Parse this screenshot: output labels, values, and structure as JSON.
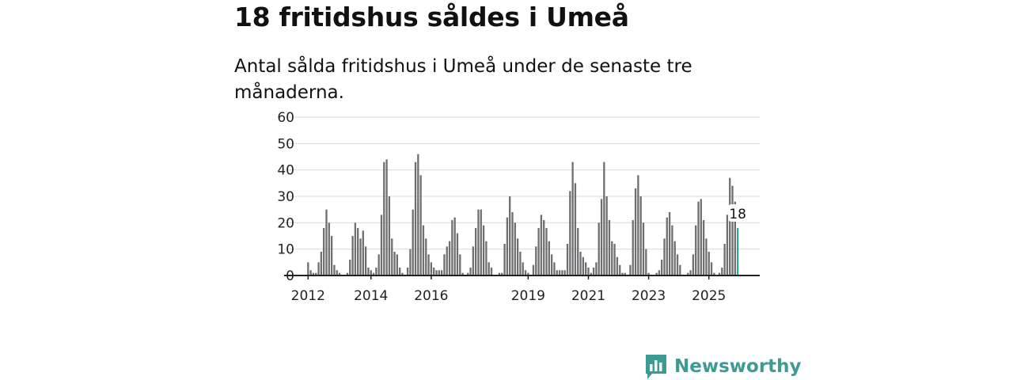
{
  "title": "18 fritidshus såldes i Umeå",
  "subtitle": "Antal sålda fritidshus i Umeå under de senaste tre månaderna.",
  "brand": {
    "name": "Newsworthy",
    "color": "#3c9b92"
  },
  "colors": {
    "bar": "#6f6f72",
    "highlight": "#2aa69b",
    "grid": "#d9d9d9",
    "axis": "#222222"
  },
  "chart_data": {
    "type": "bar",
    "ylim": [
      0,
      60
    ],
    "yticks": [
      0,
      10,
      20,
      30,
      40,
      50,
      60
    ],
    "xtick_labels": [
      "2012",
      "2014",
      "2016",
      "2019",
      "2021",
      "2023",
      "2025"
    ],
    "xtick_positions": [
      1,
      25,
      48,
      85,
      108,
      131,
      154
    ],
    "highlight_label": "18",
    "values": [
      0,
      5,
      2,
      1,
      1,
      5,
      9,
      18,
      25,
      20,
      15,
      4,
      2,
      1,
      0,
      0,
      1,
      6,
      15,
      20,
      18,
      14,
      17,
      11,
      3,
      2,
      1,
      3,
      8,
      23,
      43,
      44,
      30,
      14,
      9,
      8,
      3,
      1,
      0,
      3,
      10,
      25,
      43,
      46,
      38,
      19,
      14,
      8,
      5,
      3,
      2,
      2,
      2,
      8,
      11,
      13,
      21,
      22,
      16,
      8,
      1,
      0,
      1,
      3,
      11,
      18,
      25,
      25,
      19,
      13,
      5,
      3,
      0,
      0,
      1,
      1,
      12,
      22,
      30,
      24,
      20,
      14,
      9,
      5,
      2,
      1,
      0,
      4,
      11,
      18,
      23,
      21,
      18,
      13,
      8,
      5,
      2,
      2,
      2,
      2,
      12,
      32,
      43,
      35,
      18,
      9,
      7,
      5,
      3,
      1,
      3,
      5,
      20,
      29,
      43,
      30,
      21,
      13,
      12,
      7,
      4,
      1,
      1,
      0,
      4,
      21,
      33,
      38,
      30,
      20,
      10,
      1,
      0,
      0,
      1,
      2,
      6,
      14,
      22,
      24,
      19,
      13,
      8,
      4,
      0,
      0,
      1,
      2,
      8,
      19,
      28,
      29,
      21,
      14,
      9,
      5,
      1,
      0,
      1,
      3,
      12,
      23,
      37,
      34,
      28,
      18
    ]
  }
}
